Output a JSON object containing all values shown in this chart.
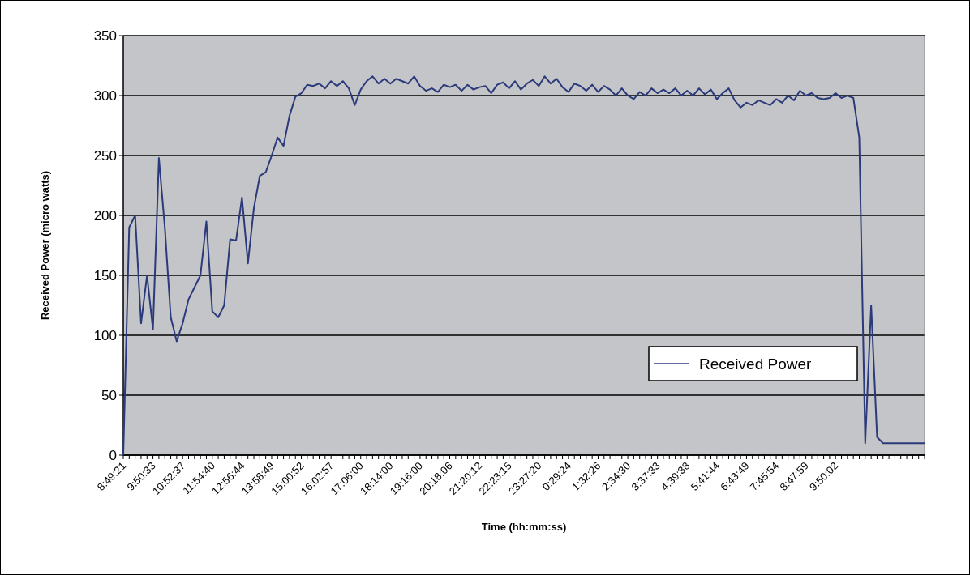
{
  "chart_data": {
    "type": "line",
    "xlabel": "Time (hh:mm:ss)",
    "ylabel": "Received Power (micro watts)",
    "categories": [
      "8:49:21",
      null,
      null,
      null,
      null,
      "9:50:33",
      null,
      null,
      null,
      null,
      "10:52:37",
      null,
      null,
      null,
      null,
      "11:54:40",
      null,
      null,
      null,
      null,
      "12:56:44",
      null,
      null,
      null,
      null,
      "13:58:49",
      null,
      null,
      null,
      null,
      "15:00:52",
      null,
      null,
      null,
      null,
      "16:02:57",
      null,
      null,
      null,
      null,
      "17:06:00",
      null,
      null,
      null,
      null,
      "18:14:00",
      null,
      null,
      null,
      null,
      "19:16:00",
      null,
      null,
      null,
      null,
      "20:18:06",
      null,
      null,
      null,
      null,
      "21:20:12",
      null,
      null,
      null,
      null,
      "22:23:15",
      null,
      null,
      null,
      null,
      "23:27:20",
      null,
      null,
      null,
      null,
      "0:29:24",
      null,
      null,
      null,
      null,
      "1:32:26",
      null,
      null,
      null,
      null,
      "2:34:30",
      null,
      null,
      null,
      null,
      "3:37:33",
      null,
      null,
      null,
      null,
      "4:39:38",
      null,
      null,
      null,
      null,
      "5:41:44",
      null,
      null,
      null,
      null,
      "6:43:49",
      null,
      null,
      null,
      null,
      "7:45:54",
      null,
      null,
      null,
      null,
      "8:47:59",
      null,
      null,
      null,
      null,
      "9:50:02",
      null,
      null,
      null,
      null,
      null,
      null,
      null,
      null,
      null,
      null,
      null,
      null,
      null,
      null,
      null
    ],
    "series": [
      {
        "name": "Received Power",
        "color": "#2b3a7a",
        "values": [
          0,
          190,
          200,
          110,
          150,
          105,
          248,
          190,
          115,
          95,
          110,
          130,
          140,
          150,
          195,
          120,
          115,
          125,
          180,
          179,
          215,
          160,
          206,
          233,
          236,
          250,
          265,
          258,
          283,
          299,
          302,
          309,
          308,
          310,
          306,
          312,
          308,
          312,
          306,
          292,
          305,
          312,
          316,
          310,
          314,
          310,
          314,
          312,
          310,
          316,
          308,
          304,
          306,
          303,
          309,
          307,
          309,
          304,
          309,
          305,
          307,
          308,
          302,
          309,
          311,
          306,
          312,
          305,
          310,
          313,
          308,
          316,
          310,
          314,
          307,
          303,
          310,
          308,
          304,
          309,
          303,
          308,
          305,
          300,
          306,
          300,
          297,
          303,
          300,
          306,
          302,
          305,
          302,
          306,
          300,
          304,
          300,
          306,
          301,
          305,
          297,
          302,
          306,
          296,
          290,
          294,
          292,
          296,
          294,
          292,
          297,
          294,
          300,
          296,
          304,
          300,
          302,
          298,
          297,
          298,
          302,
          298,
          300,
          298,
          265,
          10,
          125,
          15,
          10,
          10,
          10,
          10,
          10,
          10,
          10,
          10
        ]
      }
    ],
    "ylim": [
      0,
      350
    ],
    "yticks": [
      0,
      50,
      100,
      150,
      200,
      250,
      300,
      350
    ],
    "grid": "y",
    "legend": "bottom right",
    "marker": "none",
    "line_style": "solid"
  }
}
